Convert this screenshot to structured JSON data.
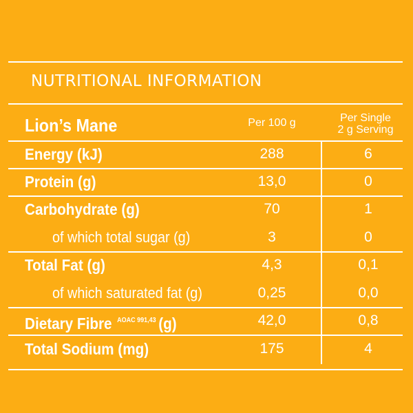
{
  "panel": {
    "title": "NUTRITIONAL INFORMATION",
    "product_name": "Lion’s Mane",
    "columns": {
      "per_100g": "Per 100 g",
      "per_serving_line1": "Per Single",
      "per_serving_line2": "2 g Serving"
    }
  },
  "rows": [
    {
      "label": "Energy (kJ)",
      "bold": true,
      "per_100g": "288",
      "per_serving": "6"
    },
    {
      "label": "Protein (g)",
      "bold": true,
      "per_100g": "13,0",
      "per_serving": "0"
    },
    {
      "label": "Carbohydrate (g)",
      "bold": true,
      "per_100g": "70",
      "per_serving": "1"
    },
    {
      "label": "of which total sugar (g)",
      "bold": false,
      "per_100g": "3",
      "per_serving": "0"
    },
    {
      "label": "Total Fat (g)",
      "bold": true,
      "per_100g": "4,3",
      "per_serving": "0,1"
    },
    {
      "label": "of which saturated fat (g)",
      "bold": false,
      "per_100g": "0,25",
      "per_serving": "0,0"
    },
    {
      "label": "Dietary Fibre",
      "label_superscript": "AOAC 991,43",
      "label_suffix": "(g)",
      "bold": true,
      "per_100g": "42,0",
      "per_serving": "0,8"
    },
    {
      "label": "Total Sodium (mg)",
      "bold": true,
      "per_100g": "175",
      "per_serving": "4"
    }
  ],
  "colors": {
    "background": "#fcad14",
    "text": "#ffffff",
    "rules": "#ffffff"
  }
}
